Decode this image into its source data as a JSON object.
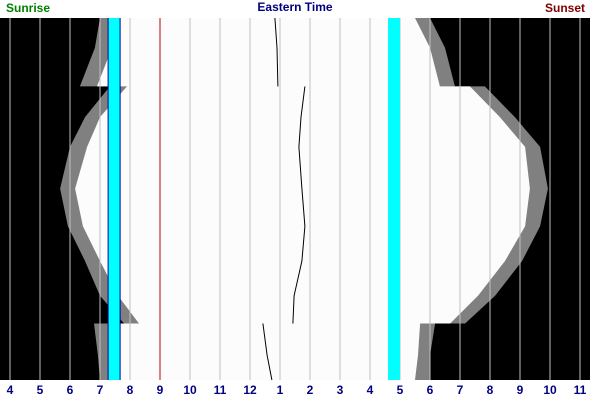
{
  "chart_data": {
    "type": "daylight",
    "title": "Eastern Time",
    "left_label": "Sunrise",
    "right_label": "Sunset",
    "days": [
      0,
      30,
      69,
      69,
      100,
      130,
      172,
      210,
      245,
      280,
      308,
      308,
      340,
      365
    ],
    "dawn": [
      7.0,
      6.83,
      6.33,
      7.33,
      6.5,
      6.0,
      5.67,
      5.93,
      6.5,
      7.0,
      7.8,
      6.8,
      6.93,
      7.0
    ],
    "sunrise": [
      7.67,
      7.4,
      6.9,
      7.9,
      7.0,
      6.57,
      6.17,
      6.43,
      7.0,
      7.6,
      8.3,
      7.3,
      7.57,
      7.67
    ],
    "sunset": [
      17.5,
      18.0,
      18.33,
      19.33,
      20.33,
      21.17,
      21.33,
      21.17,
      20.5,
      19.6,
      18.67,
      17.67,
      17.6,
      17.5
    ],
    "dusk": [
      18.0,
      18.5,
      18.83,
      19.83,
      20.83,
      21.67,
      21.93,
      21.67,
      21.07,
      20.17,
      19.17,
      18.17,
      18.0,
      18.0
    ],
    "solar_noon": [
      12.83,
      12.9,
      12.93,
      13.83,
      13.7,
      13.63,
      13.73,
      13.83,
      13.73,
      13.47,
      13.43,
      12.43,
      12.57,
      12.73
    ],
    "night_color": "#000000",
    "twilight_color": "#808080",
    "day_color": "#fcfcfc",
    "noon_color": "#000000",
    "bands": [
      {
        "from": 7.27,
        "to": 7.67,
        "color": "#00ffff"
      },
      {
        "from": 16.6,
        "to": 17.0,
        "color": "#00ffff"
      }
    ],
    "lines": [
      {
        "at": 7.27,
        "color": "#0000a0"
      },
      {
        "at": 7.67,
        "color": "#0000a0"
      },
      {
        "at": 9,
        "color": "#c00000"
      }
    ],
    "grid": true,
    "xlim": [
      3.6667,
      23.3333
    ],
    "ylim": [
      0,
      365
    ],
    "xticks": [
      4,
      5,
      6,
      7,
      8,
      9,
      10,
      11,
      12,
      {
        "value": 13,
        "label": "1"
      },
      {
        "value": 14,
        "label": "2"
      },
      {
        "value": 15,
        "label": "3"
      },
      {
        "value": 16,
        "label": "4"
      },
      {
        "value": 17,
        "label": "5"
      },
      {
        "value": 18,
        "label": "6"
      },
      {
        "value": 19,
        "label": "7"
      },
      {
        "value": 20,
        "label": "8"
      },
      {
        "value": 21,
        "label": "9"
      },
      {
        "value": 22,
        "label": "10"
      },
      {
        "value": 23,
        "label": "11"
      }
    ]
  }
}
